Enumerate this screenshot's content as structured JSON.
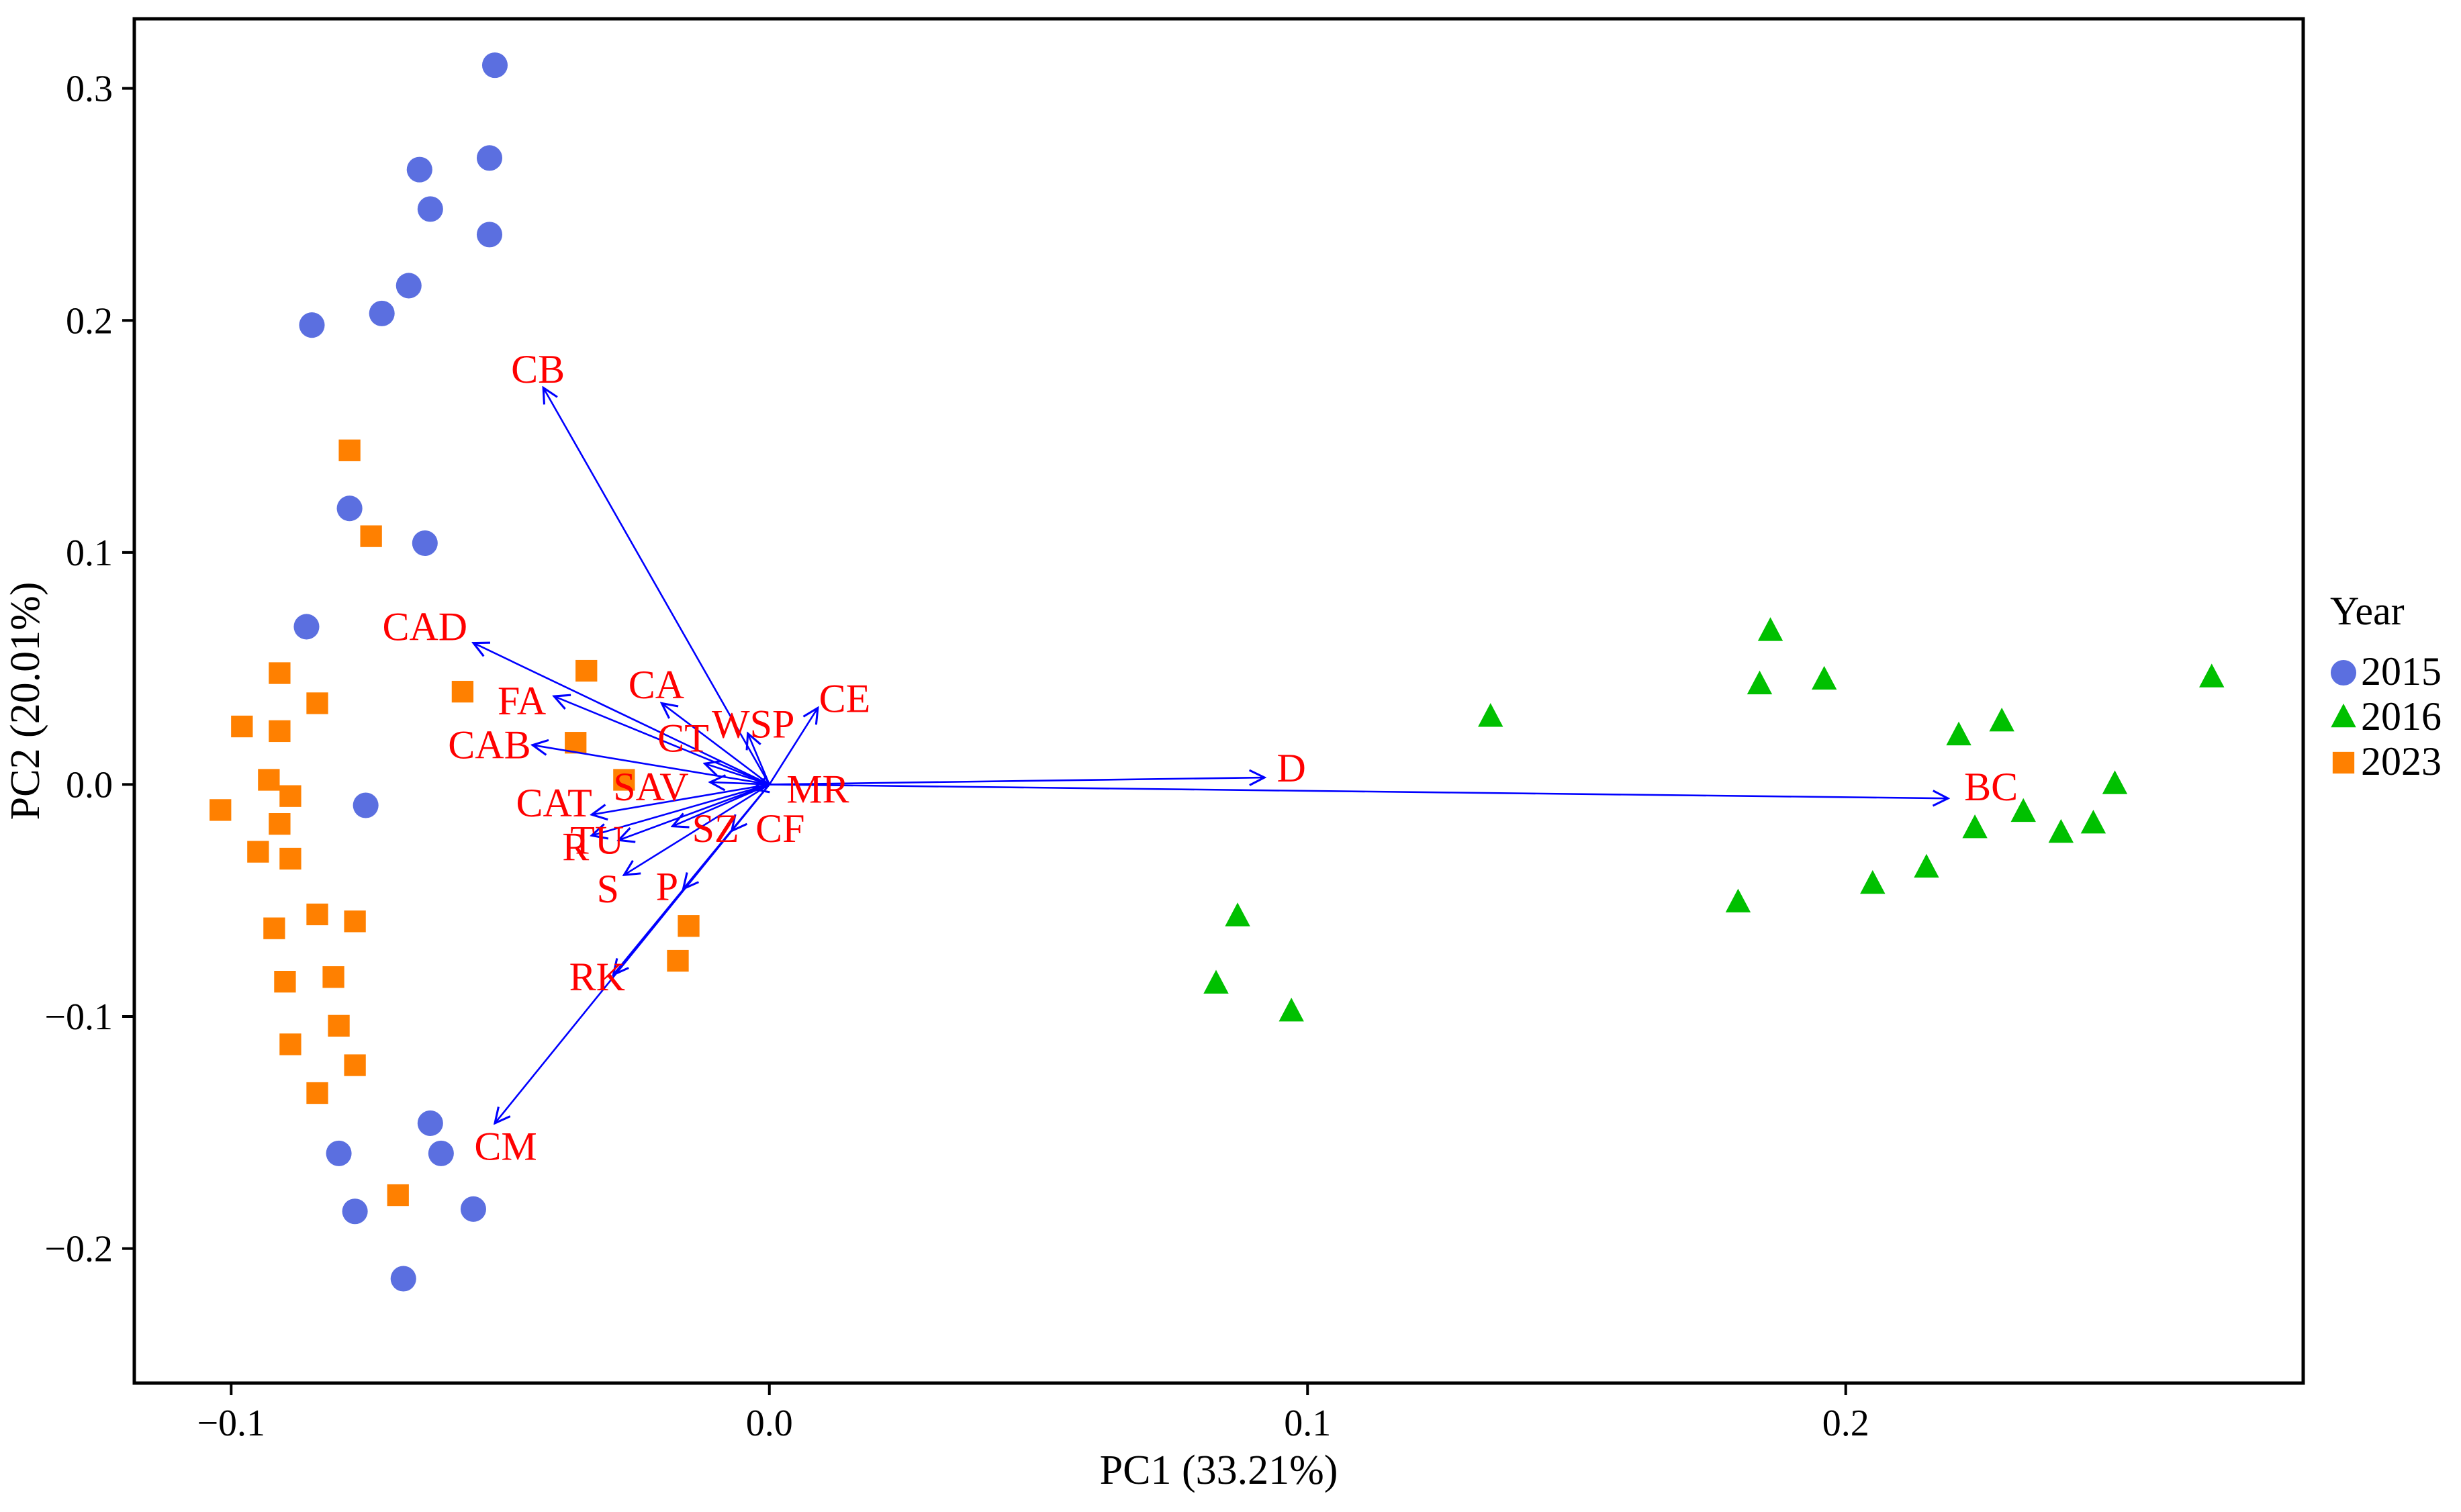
{
  "chart_data": {
    "type": "scatter",
    "subtype": "pca-biplot",
    "xlabel": "PC1 (33.21%)",
    "ylabel": "PC2 (20.01%)",
    "xlim": [
      -0.118,
      0.285
    ],
    "ylim": [
      -0.258,
      0.33
    ],
    "xticks": [
      -0.1,
      0.0,
      0.1,
      0.2
    ],
    "xtick_labels": [
      "−0.1",
      "0.0",
      "0.1",
      "0.2"
    ],
    "yticks": [
      -0.2,
      -0.1,
      0.0,
      0.1,
      0.2,
      0.3
    ],
    "ytick_labels": [
      "−0.2",
      "−0.1",
      "0.0",
      "0.1",
      "0.2",
      "0.3"
    ],
    "grid": false,
    "legend": {
      "title": "Year",
      "position": "right"
    },
    "colors": {
      "2015": "#5B6FE0",
      "2016": "#00C000",
      "2023": "#FF8000",
      "arrow": "#0000FF",
      "label": "#FF0000"
    },
    "series": [
      {
        "name": "2015",
        "marker": "circle",
        "points": [
          [
            -0.051,
            0.31
          ],
          [
            -0.052,
            0.27
          ],
          [
            -0.065,
            0.265
          ],
          [
            -0.063,
            0.248
          ],
          [
            -0.052,
            0.237
          ],
          [
            -0.067,
            0.215
          ],
          [
            -0.072,
            0.203
          ],
          [
            -0.085,
            0.198
          ],
          [
            -0.078,
            0.119
          ],
          [
            -0.064,
            0.104
          ],
          [
            -0.086,
            0.068
          ],
          [
            -0.075,
            -0.009
          ],
          [
            -0.063,
            -0.146
          ],
          [
            -0.061,
            -0.159
          ],
          [
            -0.08,
            -0.159
          ],
          [
            -0.055,
            -0.183
          ],
          [
            -0.077,
            -0.184
          ],
          [
            -0.068,
            -0.213
          ]
        ]
      },
      {
        "name": "2016",
        "marker": "triangle",
        "points": [
          [
            0.268,
            0.046
          ],
          [
            0.186,
            0.066
          ],
          [
            0.196,
            0.045
          ],
          [
            0.184,
            0.043
          ],
          [
            0.134,
            0.029
          ],
          [
            0.229,
            0.027
          ],
          [
            0.221,
            0.021
          ],
          [
            0.25,
            0.0
          ],
          [
            0.233,
            -0.012
          ],
          [
            0.24,
            -0.021
          ],
          [
            0.224,
            -0.019
          ],
          [
            0.246,
            -0.017
          ],
          [
            0.215,
            -0.036
          ],
          [
            0.205,
            -0.043
          ],
          [
            0.18,
            -0.051
          ],
          [
            0.087,
            -0.057
          ],
          [
            0.083,
            -0.086
          ],
          [
            0.097,
            -0.098
          ]
        ]
      },
      {
        "name": "2023",
        "marker": "square",
        "points": [
          [
            -0.078,
            0.144
          ],
          [
            -0.074,
            0.107
          ],
          [
            -0.034,
            0.049
          ],
          [
            -0.091,
            0.048
          ],
          [
            -0.057,
            0.04
          ],
          [
            -0.084,
            0.035
          ],
          [
            -0.098,
            0.025
          ],
          [
            -0.091,
            0.023
          ],
          [
            -0.036,
            0.018
          ],
          [
            -0.093,
            0.002
          ],
          [
            -0.027,
            0.002
          ],
          [
            -0.089,
            -0.005
          ],
          [
            -0.102,
            -0.011
          ],
          [
            -0.091,
            -0.017
          ],
          [
            -0.095,
            -0.029
          ],
          [
            -0.089,
            -0.032
          ],
          [
            -0.084,
            -0.056
          ],
          [
            -0.077,
            -0.059
          ],
          [
            -0.092,
            -0.062
          ],
          [
            -0.015,
            -0.061
          ],
          [
            -0.017,
            -0.076
          ],
          [
            -0.09,
            -0.085
          ],
          [
            -0.081,
            -0.083
          ],
          [
            -0.08,
            -0.104
          ],
          [
            -0.089,
            -0.112
          ],
          [
            -0.077,
            -0.121
          ],
          [
            -0.084,
            -0.133
          ],
          [
            -0.069,
            -0.177
          ]
        ]
      }
    ],
    "loadings": [
      {
        "name": "CB",
        "x": -0.042,
        "y": 0.171,
        "lx": -0.043,
        "ly": 0.179
      },
      {
        "name": "CAD",
        "x": -0.055,
        "y": 0.061,
        "lx": -0.064,
        "ly": 0.068
      },
      {
        "name": "CA",
        "x": -0.02,
        "y": 0.035,
        "lx": -0.021,
        "ly": 0.043
      },
      {
        "name": "FA",
        "x": -0.04,
        "y": 0.038,
        "lx": -0.046,
        "ly": 0.036
      },
      {
        "name": "WSP",
        "x": -0.004,
        "y": 0.022,
        "lx": -0.003,
        "ly": 0.026
      },
      {
        "name": "CE",
        "x": 0.009,
        "y": 0.033,
        "lx": 0.014,
        "ly": 0.037
      },
      {
        "name": "CAB",
        "x": -0.044,
        "y": 0.017,
        "lx": -0.052,
        "ly": 0.017
      },
      {
        "name": "CT",
        "x": -0.012,
        "y": 0.009,
        "lx": -0.016,
        "ly": 0.02
      },
      {
        "name": "D",
        "x": 0.092,
        "y": 0.003,
        "lx": 0.097,
        "ly": 0.007
      },
      {
        "name": "BC",
        "x": 0.219,
        "y": -0.006,
        "lx": 0.227,
        "ly": -0.001
      },
      {
        "name": "SAV",
        "x": -0.011,
        "y": 0.001,
        "lx": -0.022,
        "ly": -0.001
      },
      {
        "name": "MR",
        "x": -0.003,
        "y": -0.002,
        "lx": 0.009,
        "ly": -0.002
      },
      {
        "name": "CAT",
        "x": -0.033,
        "y": -0.013,
        "lx": -0.04,
        "ly": -0.008
      },
      {
        "name": "SZ",
        "x": -0.018,
        "y": -0.018,
        "lx": -0.01,
        "ly": -0.019
      },
      {
        "name": "CF",
        "x": -0.007,
        "y": -0.02,
        "lx": 0.002,
        "ly": -0.019
      },
      {
        "name": "TU",
        "x": -0.028,
        "y": -0.024,
        "lx": -0.032,
        "ly": -0.024
      },
      {
        "name": "R",
        "x": -0.033,
        "y": -0.022,
        "lx": -0.036,
        "ly": -0.027
      },
      {
        "name": "S",
        "x": -0.027,
        "y": -0.039,
        "lx": -0.03,
        "ly": -0.045
      },
      {
        "name": "P",
        "x": -0.016,
        "y": -0.045,
        "lx": -0.019,
        "ly": -0.044
      },
      {
        "name": "RK",
        "x": -0.029,
        "y": -0.082,
        "lx": -0.032,
        "ly": -0.083
      },
      {
        "name": "CM",
        "x": -0.051,
        "y": -0.146,
        "lx": -0.049,
        "ly": -0.156
      }
    ]
  }
}
